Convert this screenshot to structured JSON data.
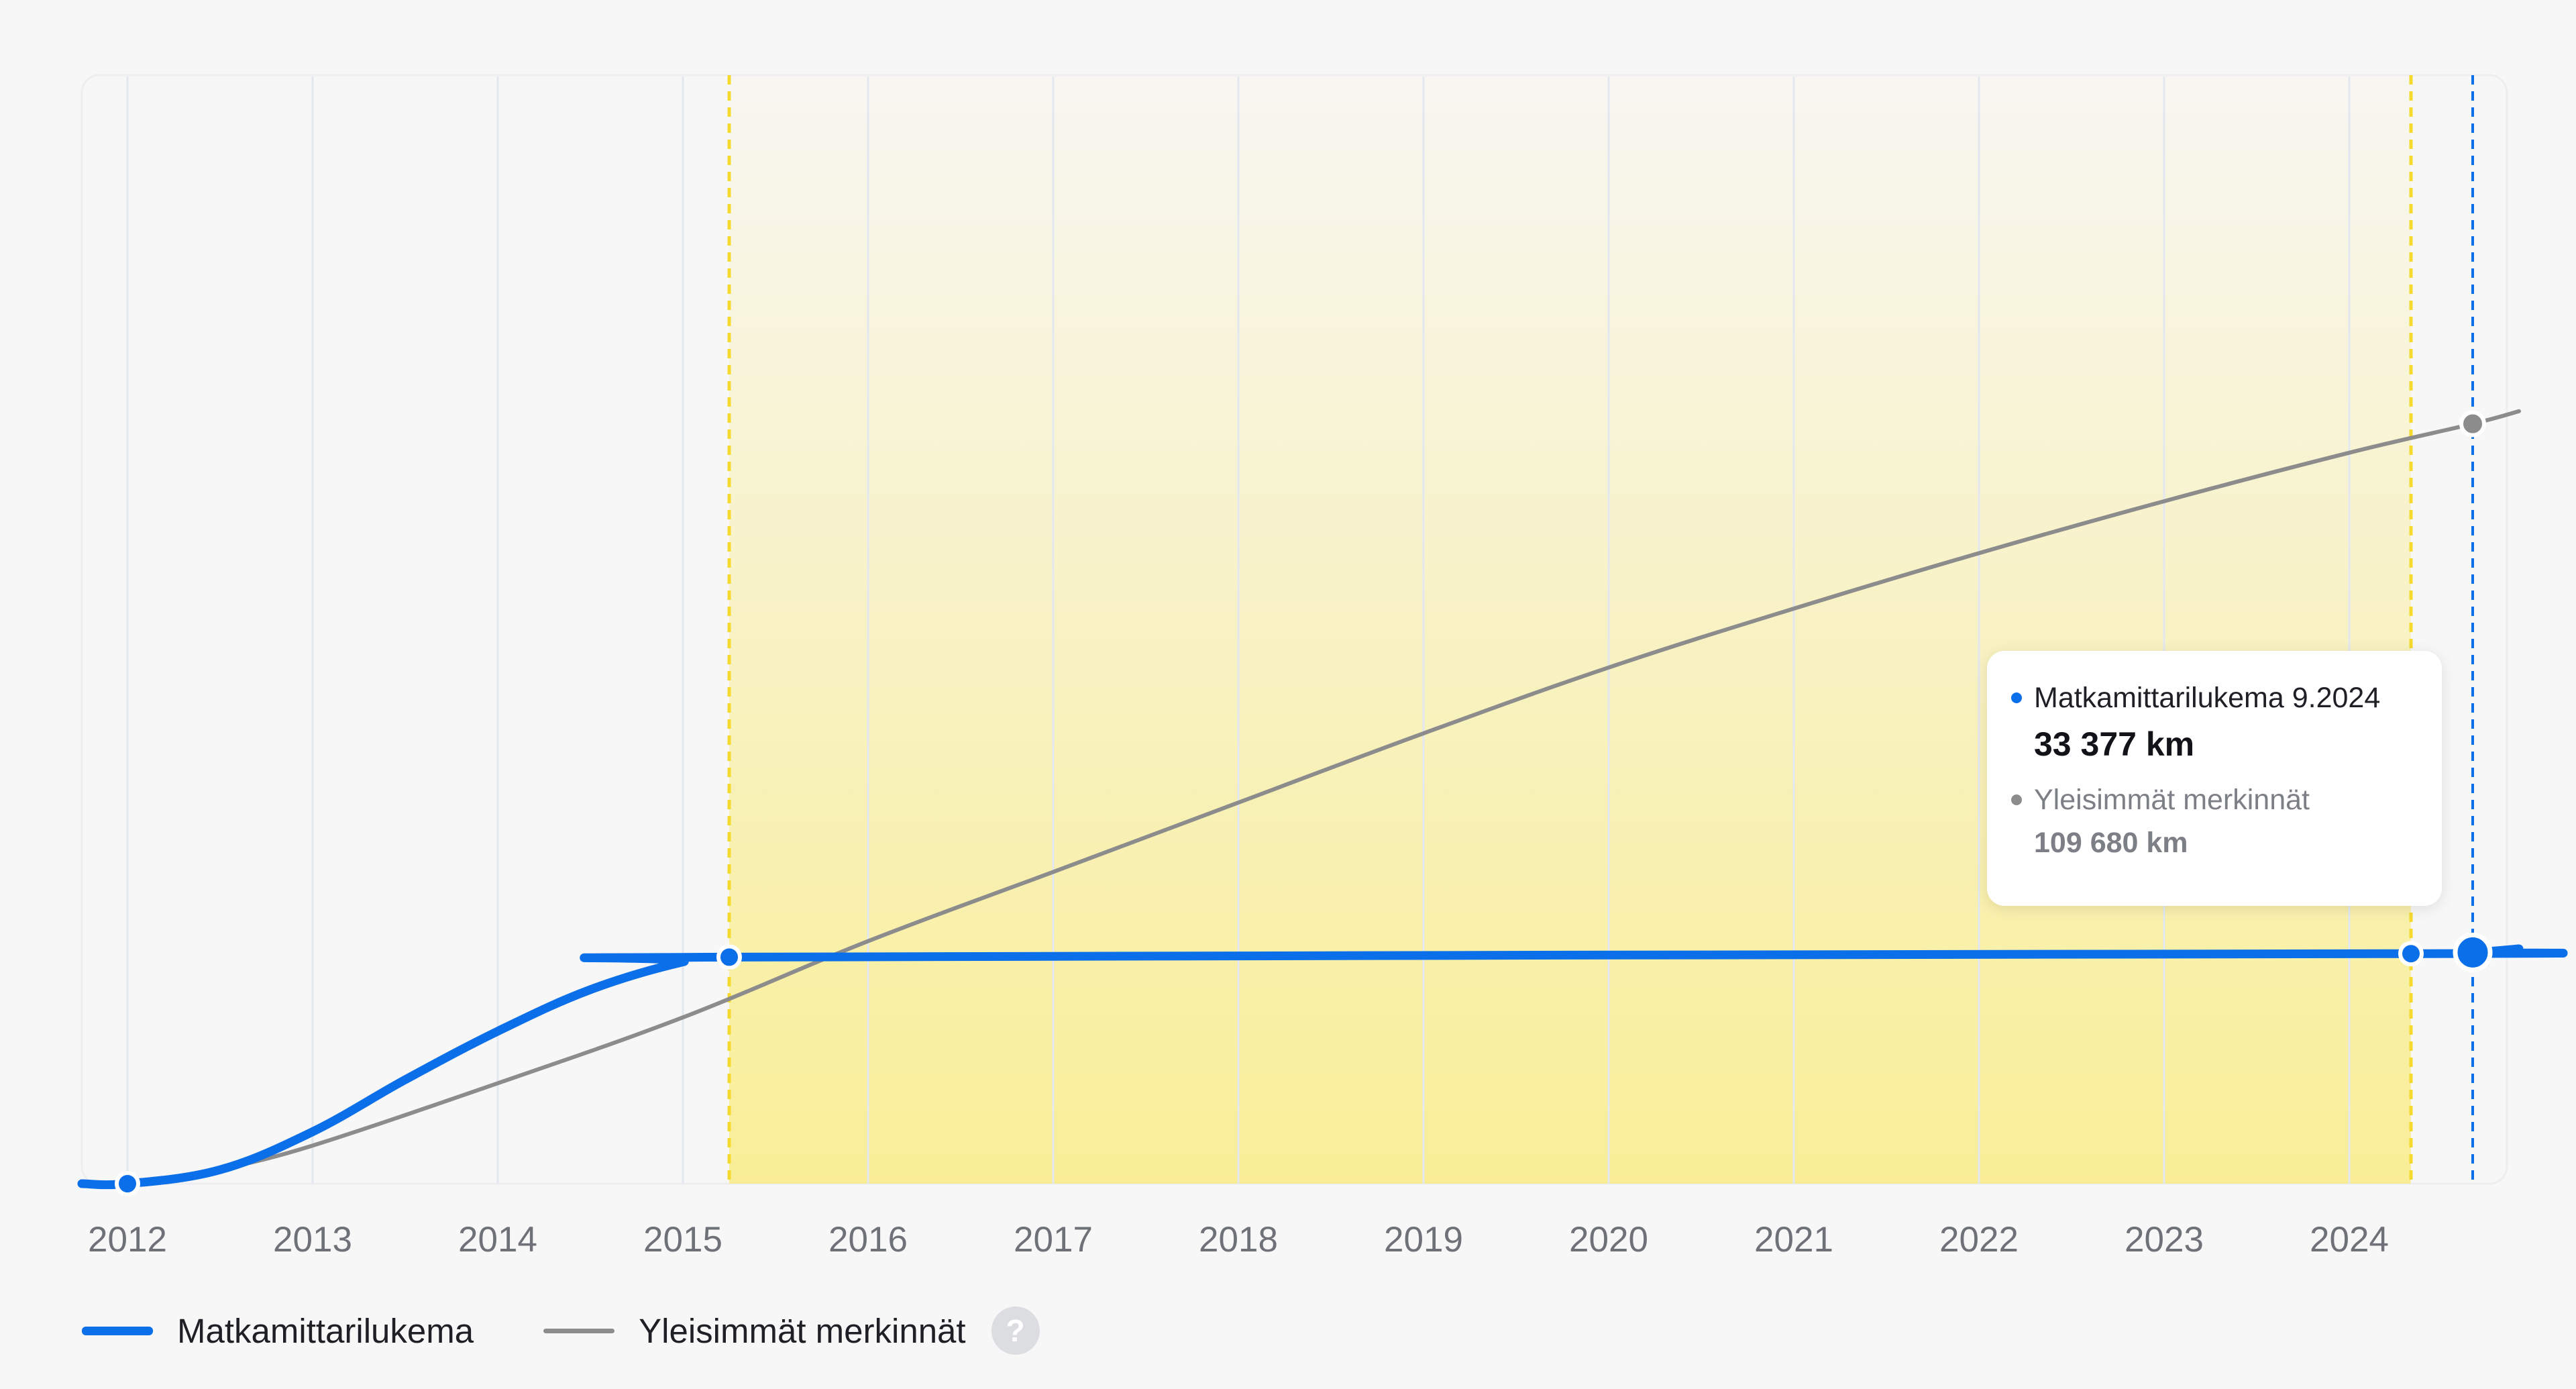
{
  "chart_data": {
    "type": "line",
    "x_axis": {
      "ticks": [
        "2012",
        "2013",
        "2014",
        "2015",
        "2016",
        "2017",
        "2018",
        "2019",
        "2020",
        "2021",
        "2022",
        "2023",
        "2024"
      ],
      "range": [
        "2011-10",
        "2024-12"
      ]
    },
    "y_axis": {
      "range": [
        0,
        160000
      ],
      "labels_shown": false
    },
    "grid": {
      "vertical": true,
      "horizontal": false
    },
    "highlight_period": {
      "start": "2015-04",
      "end": "2024-05"
    },
    "cursor": "2024-09",
    "series": [
      {
        "name": "Matkamittarilukema",
        "color": "#0a6fe8",
        "points": [
          {
            "x": "2012-01",
            "y": 0
          },
          {
            "x": "2012-07",
            "y": 2000
          },
          {
            "x": "2013-01",
            "y": 7500
          },
          {
            "x": "2013-07",
            "y": 15000
          },
          {
            "x": "2014-01",
            "y": 22000
          },
          {
            "x": "2014-07",
            "y": 28000
          },
          {
            "x": "2015-01",
            "y": 32000
          },
          {
            "x": "2015-04",
            "y": 32700
          },
          {
            "x": "2024-05",
            "y": 33200
          },
          {
            "x": "2024-09",
            "y": 33377
          },
          {
            "x": "2024-12",
            "y": 33900
          }
        ],
        "markers": [
          "2012-01",
          "2015-04",
          "2024-05",
          "2024-09"
        ]
      },
      {
        "name": "Yleisimmät merkinnät",
        "color": "#8c8c8c",
        "points": [
          {
            "x": "2012-07",
            "y": 2000
          },
          {
            "x": "2013-01",
            "y": 5500
          },
          {
            "x": "2014-01",
            "y": 14500
          },
          {
            "x": "2015-01",
            "y": 24000
          },
          {
            "x": "2016-01",
            "y": 35000
          },
          {
            "x": "2017-01",
            "y": 45000
          },
          {
            "x": "2018-01",
            "y": 55000
          },
          {
            "x": "2019-01",
            "y": 65000
          },
          {
            "x": "2020-01",
            "y": 74500
          },
          {
            "x": "2021-01",
            "y": 83000
          },
          {
            "x": "2022-01",
            "y": 91000
          },
          {
            "x": "2023-01",
            "y": 98500
          },
          {
            "x": "2024-01",
            "y": 105500
          },
          {
            "x": "2024-09",
            "y": 109680
          },
          {
            "x": "2024-12",
            "y": 111500
          }
        ],
        "markers": [
          "2024-09"
        ]
      }
    ]
  },
  "tooltip": {
    "series1_label": "Matkamittarilukema 9.2024",
    "series1_value": "33 377 km",
    "series2_label": "Yleisimmät merkinnät",
    "series2_value": "109 680 km"
  },
  "legend": {
    "item1": "Matkamittarilukema",
    "item2": "Yleisimmät merkinnät",
    "help": "?"
  },
  "colors": {
    "odometer": "#0a6fe8",
    "common": "#8c8c8c",
    "highlight_line": "#f5d92c",
    "highlight_fill": "#faeb76",
    "cursor_line": "#0a6fe8",
    "grid": "#e3e7f0"
  }
}
